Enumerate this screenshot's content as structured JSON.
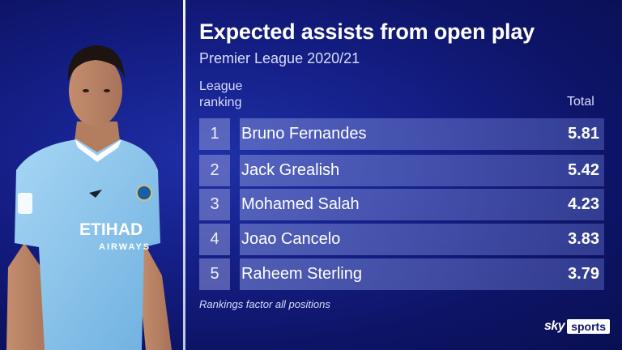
{
  "title": "Expected assists from open play",
  "subtitle": "Premier League 2020/21",
  "headers": {
    "rank_line1": "League",
    "rank_line2": "ranking",
    "total": "Total"
  },
  "rows": [
    {
      "rank": "1",
      "name": "Bruno Fernandes",
      "total": "5.81"
    },
    {
      "rank": "2",
      "name": "Jack Grealish",
      "total": "5.42"
    },
    {
      "rank": "3",
      "name": "Mohamed Salah",
      "total": "4.23"
    },
    {
      "rank": "4",
      "name": "Joao Cancelo",
      "total": "3.83"
    },
    {
      "rank": "5",
      "name": "Raheem Sterling",
      "total": "3.79"
    }
  ],
  "footnote": "Rankings factor all positions",
  "branding": {
    "sky": "sky",
    "sports": "sports"
  },
  "shirt": {
    "sponsor_line1": "ETIHAD",
    "sponsor_line2": "AIRWAYS"
  },
  "colors": {
    "background": "#15208a",
    "shirt": "#8ec5ec"
  }
}
